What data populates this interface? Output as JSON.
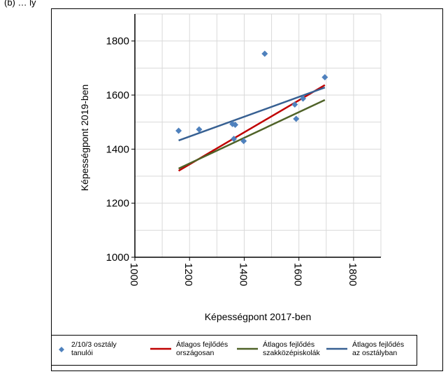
{
  "header_fragment": "(b) … ly",
  "chart_data": {
    "type": "scatter",
    "xlabel": "Képességpont 2017-ben",
    "ylabel": "Képességpont 2019-ben",
    "xlim": [
      1000,
      1900
    ],
    "ylim": [
      1000,
      1900
    ],
    "x_ticks": [
      "1000",
      "1200",
      "1400",
      "1600",
      "1800"
    ],
    "y_ticks": [
      "1000",
      "1200",
      "1400",
      "1600",
      "1800"
    ],
    "x_tick_values": [
      1000,
      1200,
      1400,
      1600,
      1800
    ],
    "y_tick_values": [
      1000,
      1200,
      1400,
      1600,
      1800
    ],
    "grid": true,
    "legend_position": "bottom",
    "series": [
      {
        "name": "2/10/3 osztály tanulói",
        "kind": "scatter",
        "color": "#4f81bd",
        "points": [
          [
            1160,
            1468
          ],
          [
            1235,
            1473
          ],
          [
            1357,
            1493
          ],
          [
            1367,
            1490
          ],
          [
            1362,
            1438
          ],
          [
            1398,
            1430
          ],
          [
            1475,
            1753
          ],
          [
            1585,
            1565
          ],
          [
            1590,
            1512
          ],
          [
            1615,
            1587
          ],
          [
            1695,
            1666
          ]
        ]
      },
      {
        "name": "Átlagos fejlődés országosan",
        "kind": "line",
        "color": "#c00000",
        "points": [
          [
            1160,
            1320
          ],
          [
            1695,
            1637
          ]
        ]
      },
      {
        "name": "Átlagos fejlődés szakközépiskolák",
        "kind": "line",
        "color": "#4f6228",
        "points": [
          [
            1160,
            1328
          ],
          [
            1695,
            1582
          ]
        ]
      },
      {
        "name": "Átlagos fejlődés az osztályban",
        "kind": "line",
        "color": "#376092",
        "points": [
          [
            1160,
            1432
          ],
          [
            1695,
            1628
          ]
        ]
      }
    ],
    "legend": [
      {
        "line1": "2/10/3 osztály",
        "line2": "tanulói"
      },
      {
        "line1": "Átlagos fejlődés",
        "line2": "országosan"
      },
      {
        "line1": "Átlagos fejlődés",
        "line2": "szakközépiskolák"
      },
      {
        "line1": "Átlagos fejlődés",
        "line2": "az osztályban"
      }
    ]
  }
}
